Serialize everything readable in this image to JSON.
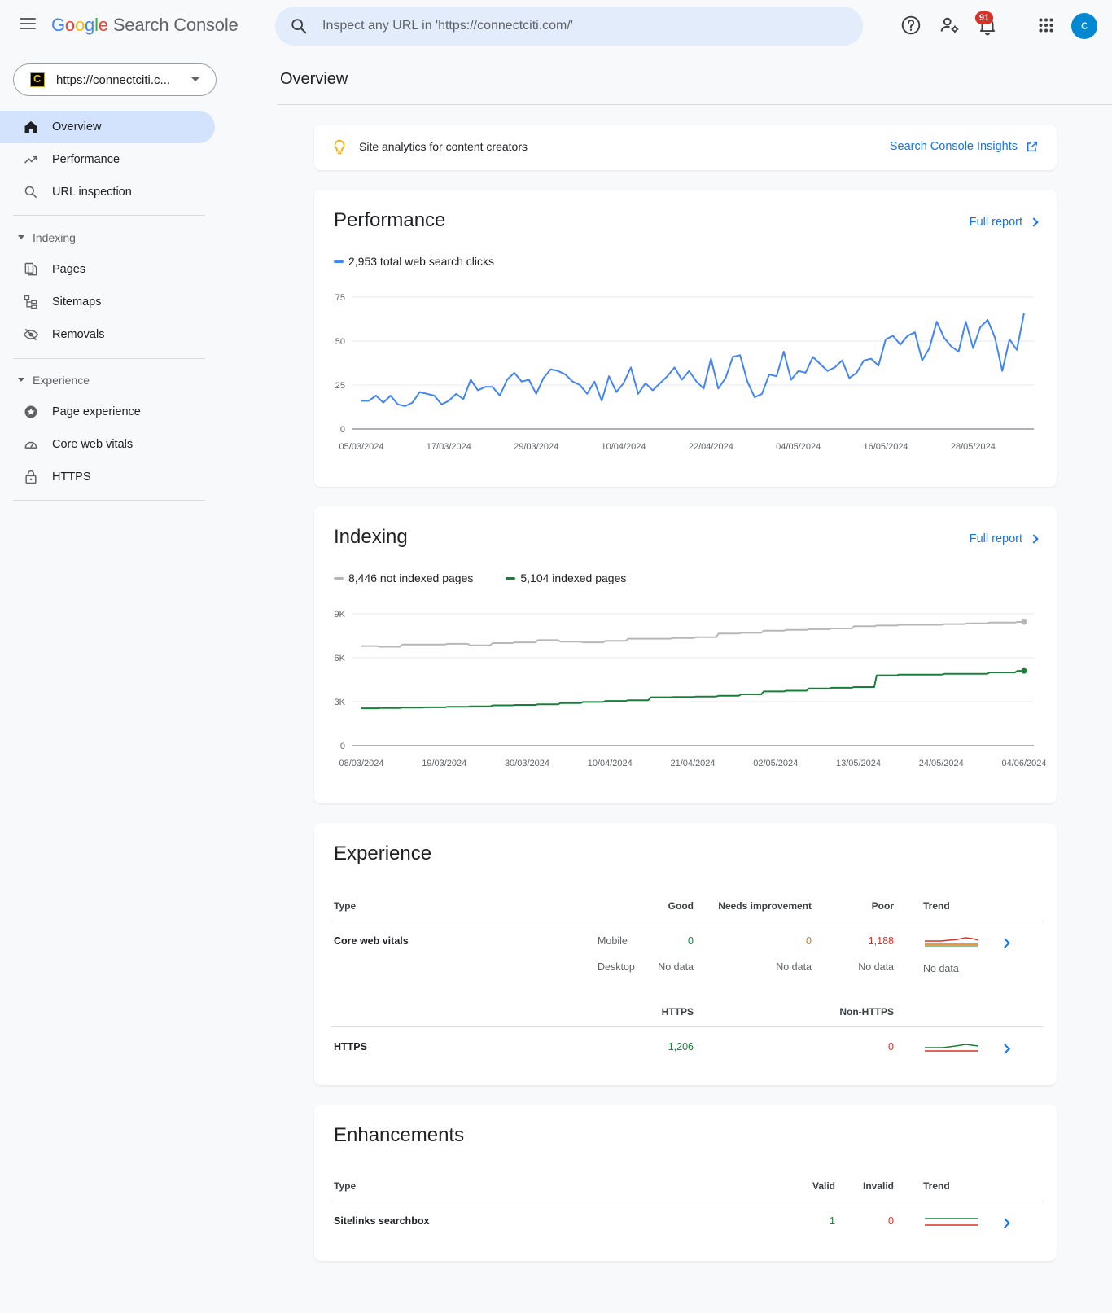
{
  "header": {
    "logo_google": [
      "G",
      "o",
      "o",
      "g",
      "l",
      "e"
    ],
    "logo_product": "Search Console",
    "search_placeholder": "Inspect any URL in 'https://connectciti.com/'",
    "notification_count": "91",
    "avatar_letter": "c",
    "icons": [
      "menu-icon",
      "search-icon",
      "help-icon",
      "manage-users-icon",
      "bell-icon",
      "apps-grid-icon"
    ]
  },
  "sidebar": {
    "property_label": "https://connectciti.c...",
    "property_favicon": "C",
    "top_items": [
      {
        "label": "Overview",
        "icon": "home-icon",
        "active": true
      },
      {
        "label": "Performance",
        "icon": "trending-up-icon"
      },
      {
        "label": "URL inspection",
        "icon": "search-icon"
      }
    ],
    "indexing_header": "Indexing",
    "indexing_items": [
      {
        "label": "Pages",
        "icon": "pages-icon"
      },
      {
        "label": "Sitemaps",
        "icon": "sitemap-icon"
      },
      {
        "label": "Removals",
        "icon": "eye-off-icon"
      }
    ],
    "experience_header": "Experience",
    "experience_items": [
      {
        "label": "Page experience",
        "icon": "star-circle-icon"
      },
      {
        "label": "Core web vitals",
        "icon": "gauge-icon"
      },
      {
        "label": "HTTPS",
        "icon": "lock-icon"
      }
    ]
  },
  "main": {
    "page_title": "Overview",
    "insights": {
      "text": "Site analytics for content creators",
      "link": "Search Console Insights"
    },
    "performance": {
      "title": "Performance",
      "full_report": "Full report"
    },
    "indexing": {
      "title": "Indexing",
      "full_report": "Full report"
    },
    "experience": {
      "title": "Experience",
      "headers": {
        "type": "Type",
        "good": "Good",
        "needs": "Needs improvement",
        "poor": "Poor",
        "trend": "Trend"
      },
      "cwv": {
        "label": "Core web vitals",
        "mobile": "Mobile",
        "desktop": "Desktop",
        "m_good": "0",
        "m_needs": "0",
        "m_poor": "1,188",
        "d_good": "No data",
        "d_needs": "No data",
        "d_poor": "No data",
        "d_trend": "No data"
      },
      "https_headers": {
        "https": "HTTPS",
        "non_https": "Non-HTTPS"
      },
      "https": {
        "label": "HTTPS",
        "https": "1,206",
        "non_https": "0"
      }
    },
    "enhancements": {
      "title": "Enhancements",
      "headers": {
        "type": "Type",
        "valid": "Valid",
        "invalid": "Invalid",
        "trend": "Trend"
      },
      "row": {
        "label": "Sitelinks searchbox",
        "valid": "1",
        "invalid": "0"
      }
    },
    "colors": {
      "clicks": "#4285f4",
      "not_indexed": "#b7b7b7",
      "indexed": "#188038",
      "good": "#188038",
      "needs": "#e37400",
      "poor": "#d93025"
    }
  },
  "chart_data": [
    {
      "type": "line",
      "series": [
        {
          "name": "2,953 total web search clicks",
          "x": [
            "05/03/2024",
            "06/03/2024",
            "07/03/2024",
            "08/03/2024",
            "09/03/2024",
            "10/03/2024",
            "11/03/2024",
            "12/03/2024",
            "13/03/2024",
            "14/03/2024",
            "15/03/2024",
            "16/03/2024",
            "17/03/2024",
            "18/03/2024",
            "19/03/2024",
            "20/03/2024",
            "21/03/2024",
            "22/03/2024",
            "23/03/2024",
            "24/03/2024",
            "25/03/2024",
            "26/03/2024",
            "27/03/2024",
            "28/03/2024",
            "29/03/2024",
            "30/03/2024",
            "31/03/2024",
            "01/04/2024",
            "02/04/2024",
            "03/04/2024",
            "04/04/2024",
            "05/04/2024",
            "06/04/2024",
            "07/04/2024",
            "08/04/2024",
            "09/04/2024",
            "10/04/2024",
            "11/04/2024",
            "12/04/2024",
            "13/04/2024",
            "14/04/2024",
            "15/04/2024",
            "16/04/2024",
            "17/04/2024",
            "18/04/2024",
            "19/04/2024",
            "20/04/2024",
            "21/04/2024",
            "22/04/2024",
            "23/04/2024",
            "24/04/2024",
            "25/04/2024",
            "26/04/2024",
            "27/04/2024",
            "28/04/2024",
            "29/04/2024",
            "30/04/2024",
            "01/05/2024",
            "02/05/2024",
            "03/05/2024",
            "04/05/2024",
            "05/05/2024",
            "06/05/2024",
            "07/05/2024",
            "08/05/2024",
            "09/05/2024",
            "10/05/2024",
            "11/05/2024",
            "12/05/2024",
            "13/05/2024",
            "14/05/2024",
            "15/05/2024",
            "16/05/2024",
            "17/05/2024",
            "18/05/2024",
            "19/05/2024",
            "20/05/2024",
            "21/05/2024",
            "22/05/2024",
            "23/05/2024",
            "24/05/2024",
            "25/05/2024",
            "26/05/2024",
            "27/05/2024",
            "28/05/2024",
            "29/05/2024",
            "30/05/2024",
            "31/05/2024",
            "01/06/2024",
            "02/06/2024",
            "03/06/2024",
            "04/06/2024"
          ],
          "values": [
            16,
            16,
            19,
            15,
            19,
            14,
            13,
            15,
            21,
            20,
            19,
            14,
            16,
            20,
            17,
            28,
            22,
            24,
            24,
            19,
            28,
            32,
            27,
            28,
            20,
            29,
            34,
            33,
            31,
            27,
            25,
            20,
            27,
            16,
            30,
            21,
            26,
            35,
            20,
            26,
            22,
            26,
            30,
            35,
            28,
            33,
            27,
            23,
            40,
            23,
            29,
            41,
            42,
            27,
            18,
            20,
            31,
            30,
            44,
            28,
            33,
            32,
            41,
            37,
            33,
            35,
            39,
            29,
            32,
            39,
            40,
            36,
            51,
            53,
            48,
            53,
            55,
            39,
            46,
            61,
            52,
            47,
            44,
            61,
            46,
            58,
            62,
            52,
            33,
            51,
            45,
            66
          ]
        }
      ],
      "x_tick_labels": [
        "05/03/2024",
        "17/03/2024",
        "29/03/2024",
        "10/04/2024",
        "22/04/2024",
        "04/05/2024",
        "16/05/2024",
        "28/05/2024"
      ],
      "ylim": [
        0,
        75
      ],
      "y_ticks": [
        0,
        25,
        50,
        75
      ],
      "grid": true
    },
    {
      "type": "line",
      "series": [
        {
          "name": "8,446 not indexed pages",
          "x": [
            "08/03/2024",
            "11/03/2024",
            "14/03/2024",
            "17/03/2024",
            "20/03/2024",
            "23/03/2024",
            "26/03/2024",
            "29/03/2024",
            "01/04/2024",
            "04/04/2024",
            "07/04/2024",
            "10/04/2024",
            "13/04/2024",
            "16/04/2024",
            "19/04/2024",
            "22/04/2024",
            "25/04/2024",
            "28/04/2024",
            "01/05/2024",
            "04/05/2024",
            "07/05/2024",
            "10/05/2024",
            "13/05/2024",
            "16/05/2024",
            "19/05/2024",
            "22/05/2024",
            "25/05/2024",
            "28/05/2024",
            "31/05/2024",
            "04/06/2024"
          ],
          "values": [
            6800,
            6750,
            6900,
            6900,
            6950,
            6850,
            7000,
            7050,
            7200,
            7100,
            7050,
            7150,
            7300,
            7300,
            7350,
            7400,
            7650,
            7700,
            7850,
            7900,
            7950,
            8000,
            8150,
            8200,
            8250,
            8250,
            8300,
            8350,
            8400,
            8446
          ]
        },
        {
          "name": "5,104 indexed pages",
          "x": [
            "08/03/2024",
            "11/03/2024",
            "14/03/2024",
            "17/03/2024",
            "20/03/2024",
            "23/03/2024",
            "26/03/2024",
            "29/03/2024",
            "01/04/2024",
            "04/04/2024",
            "07/04/2024",
            "10/04/2024",
            "13/04/2024",
            "16/04/2024",
            "19/04/2024",
            "22/04/2024",
            "25/04/2024",
            "28/04/2024",
            "01/05/2024",
            "04/05/2024",
            "07/05/2024",
            "10/05/2024",
            "13/05/2024",
            "16/05/2024",
            "19/05/2024",
            "22/05/2024",
            "25/05/2024",
            "28/05/2024",
            "31/05/2024",
            "04/06/2024"
          ],
          "values": [
            2550,
            2570,
            2600,
            2620,
            2650,
            2680,
            2750,
            2780,
            2820,
            2900,
            2980,
            3050,
            3100,
            3300,
            3320,
            3350,
            3400,
            3500,
            3700,
            3750,
            3900,
            3950,
            4000,
            4800,
            4850,
            4850,
            4900,
            4900,
            5000,
            5104
          ]
        }
      ],
      "x_tick_labels": [
        "08/03/2024",
        "19/03/2024",
        "30/03/2024",
        "10/04/2024",
        "21/04/2024",
        "02/05/2024",
        "13/05/2024",
        "24/05/2024",
        "04/06/2024"
      ],
      "ylim": [
        0,
        9000
      ],
      "y_tick_labels": [
        "0",
        "3K",
        "6K",
        "9K"
      ],
      "grid": true
    }
  ]
}
